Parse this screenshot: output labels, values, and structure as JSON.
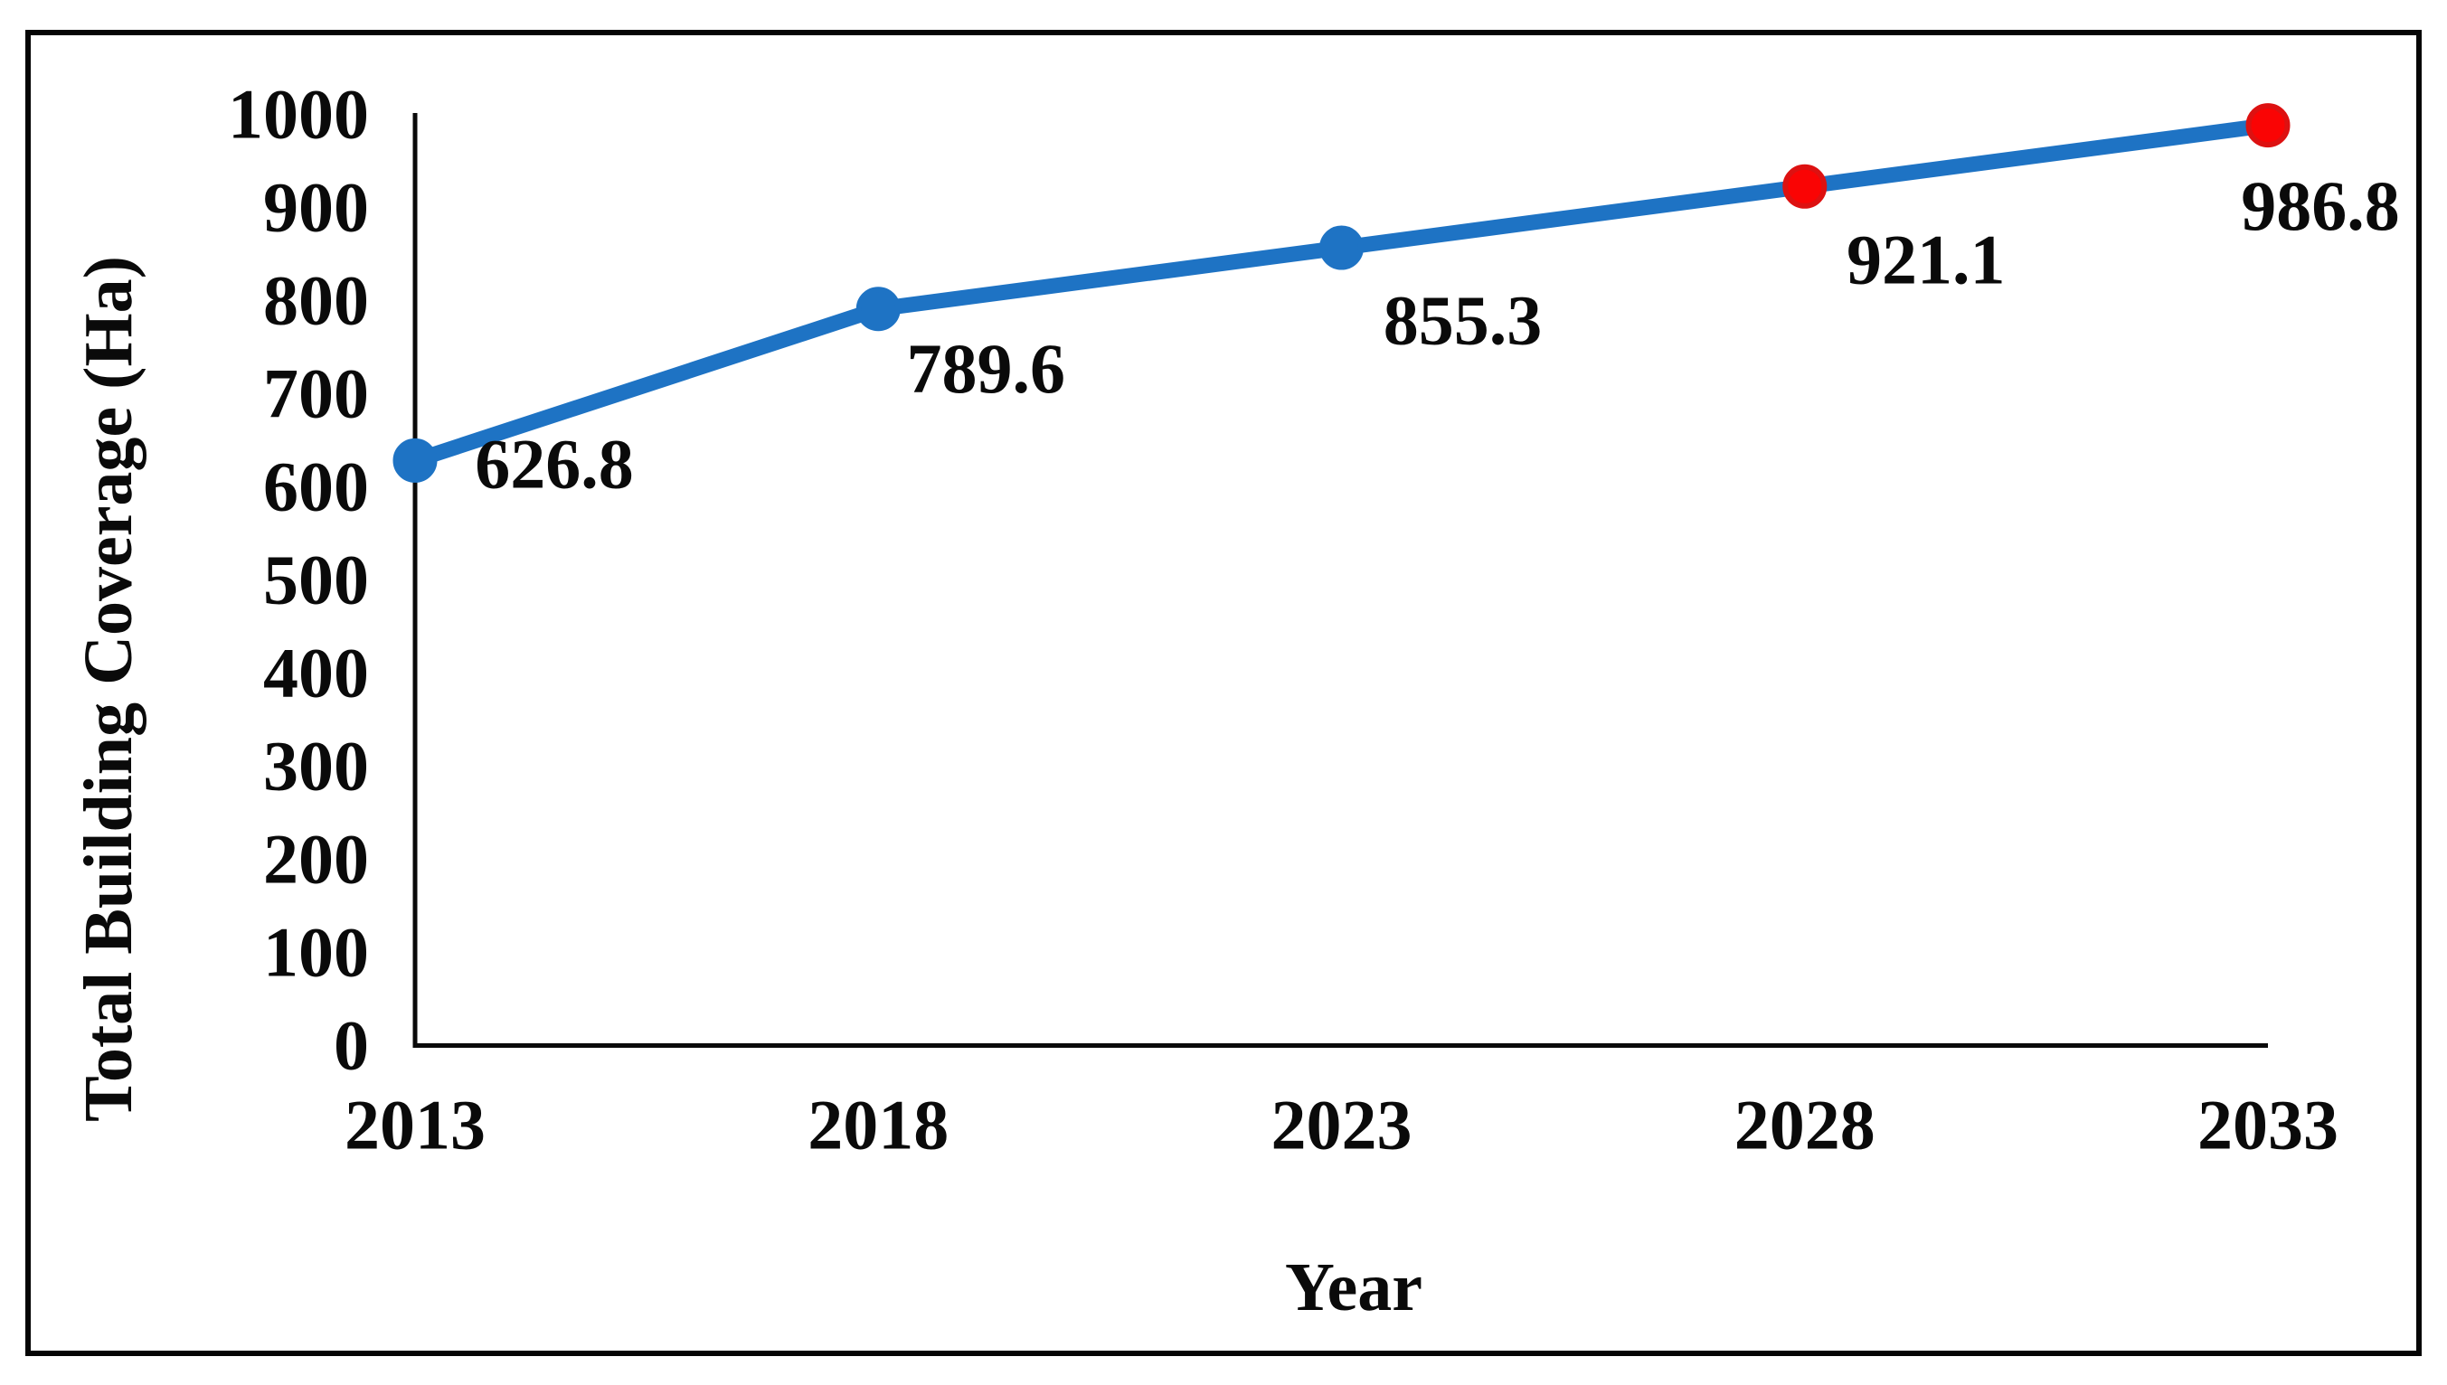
{
  "figure": {
    "background": "#ffffff",
    "border_color": "#050505"
  },
  "chart_data": {
    "type": "line",
    "title": "",
    "xlabel": "Year",
    "ylabel": "Total Building Coverage (Ha)",
    "categories": [
      "2013",
      "2018",
      "2023",
      "2028",
      "2033"
    ],
    "series": [
      {
        "name": "Total Building Coverage (Ha)",
        "values": [
          626.8,
          789.6,
          855.3,
          921.1,
          986.8
        ],
        "line_color": "#1e73c4",
        "point_colors": [
          "#1e73c4",
          "#1e73c4",
          "#1e73c4",
          "#fa0404",
          "#fa0404"
        ],
        "point_ring_colors": [
          "#1e73c4",
          "#1e73c4",
          "#1e73c4",
          "#dd1111",
          "#dd1111"
        ]
      }
    ],
    "data_labels": [
      "626.8",
      "789.6",
      "855.3",
      "921.1",
      "986.8"
    ],
    "y_ticks": [
      "0",
      "100",
      "200",
      "300",
      "400",
      "500",
      "600",
      "700",
      "800",
      "900",
      "1000"
    ],
    "ylim": [
      0,
      1000
    ],
    "grid": false,
    "legend": false,
    "axis_color": "#0a0a0a",
    "text_color": "#0a0a0a"
  }
}
